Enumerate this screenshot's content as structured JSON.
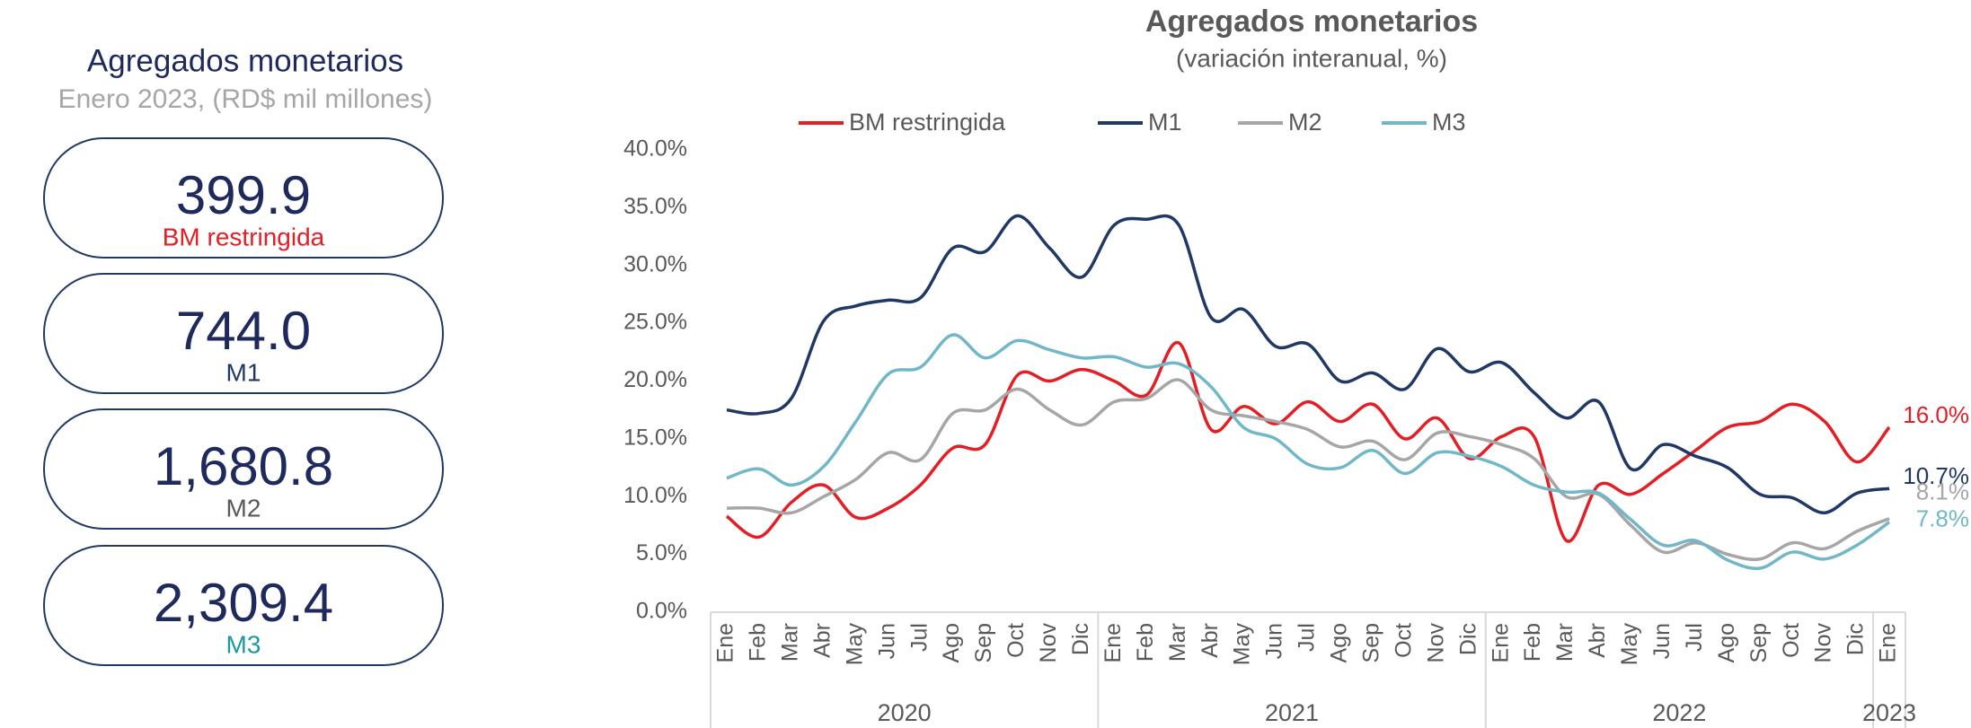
{
  "summary": {
    "title": "Agregados monetarios",
    "subtitle": "Enero 2023, (RD$ mil millones)",
    "cards": [
      {
        "value": "399.9",
        "label": "BM restringida",
        "color": "#e31e24"
      },
      {
        "value": "744.0",
        "label": "M1",
        "color": "#1f3864"
      },
      {
        "value": "1,680.8",
        "label": "M2",
        "color": "#595959"
      },
      {
        "value": "2,309.4",
        "label": "M3",
        "color": "#1a9aa0"
      }
    ]
  },
  "chart_data": {
    "type": "line",
    "title": "Agregados monetarios",
    "subtitle": "(variación interanual, %)",
    "categories": [
      "Ene",
      "Feb",
      "Mar",
      "Abr",
      "May",
      "Jun",
      "Jul",
      "Ago",
      "Sep",
      "Oct",
      "Nov",
      "Dic",
      "Ene",
      "Feb",
      "Mar",
      "Abr",
      "May",
      "Jun",
      "Jul",
      "Ago",
      "Sep",
      "Oct",
      "Nov",
      "Dic",
      "Ene",
      "Feb",
      "Mar",
      "Abr",
      "May",
      "Jun",
      "Jul",
      "Ago",
      "Sep",
      "Oct",
      "Nov",
      "Dic",
      "Ene"
    ],
    "category_groups": [
      "2020",
      "2020",
      "2020",
      "2020",
      "2020",
      "2020",
      "2020",
      "2020",
      "2020",
      "2020",
      "2020",
      "2020",
      "2021",
      "2021",
      "2021",
      "2021",
      "2021",
      "2021",
      "2021",
      "2021",
      "2021",
      "2021",
      "2021",
      "2021",
      "2022",
      "2022",
      "2022",
      "2022",
      "2022",
      "2022",
      "2022",
      "2022",
      "2022",
      "2022",
      "2022",
      "2022",
      "2023"
    ],
    "ylim": [
      0,
      40
    ],
    "yticks": [
      {
        "value": 0,
        "label": "0.0%"
      },
      {
        "value": 5,
        "label": "5.0%"
      },
      {
        "value": 10,
        "label": "10.0%"
      },
      {
        "value": 15,
        "label": "15.0%"
      },
      {
        "value": 20,
        "label": "20.0%"
      },
      {
        "value": 25,
        "label": "25.0%"
      },
      {
        "value": 30,
        "label": "30.0%"
      },
      {
        "value": 35,
        "label": "35.0%"
      },
      {
        "value": 40,
        "label": "40.0%"
      }
    ],
    "legend": "top",
    "grid": false,
    "series": [
      {
        "name": "BM restringida",
        "color": "#e31e24",
        "values": [
          8.3,
          6.5,
          9.5,
          11,
          8.2,
          9,
          11,
          14.2,
          14.5,
          20.5,
          20,
          21,
          20,
          18.8,
          23.3,
          15.8,
          17.8,
          16.3,
          18.2,
          16.5,
          18,
          15,
          16.8,
          13.3,
          15.2,
          15.2,
          6.2,
          11,
          10.2,
          12,
          14,
          16,
          16.5,
          18,
          16.5,
          13,
          16.0
        ],
        "value_labels": [
          null,
          null,
          null,
          null,
          null,
          null,
          null,
          null,
          null,
          null,
          null,
          null,
          null,
          null,
          null,
          null,
          null,
          null,
          null,
          null,
          null,
          null,
          null,
          null,
          null,
          null,
          null,
          null,
          null,
          null,
          null,
          null,
          null,
          null,
          null,
          null,
          "16.0%"
        ]
      },
      {
        "name": "M1",
        "color": "#1f3864",
        "values": [
          17.5,
          17.2,
          18.5,
          25.2,
          26.5,
          27,
          27.2,
          31.5,
          31.2,
          34.3,
          31.5,
          29,
          33.5,
          34,
          33.5,
          25.5,
          26.2,
          23,
          23.2,
          20,
          20.7,
          19.3,
          22.8,
          20.8,
          21.6,
          19,
          16.8,
          18.2,
          12.4,
          14.5,
          13.5,
          12.5,
          10.2,
          9.9,
          8.6,
          10.3,
          10.7
        ],
        "value_labels": [
          null,
          null,
          null,
          null,
          null,
          null,
          null,
          null,
          null,
          null,
          null,
          null,
          null,
          null,
          null,
          null,
          null,
          null,
          null,
          null,
          null,
          null,
          null,
          null,
          null,
          null,
          null,
          null,
          null,
          null,
          null,
          null,
          null,
          null,
          null,
          null,
          "10.7%"
        ]
      },
      {
        "name": "M2",
        "color": "#a6a6a6",
        "values": [
          9,
          9,
          8.6,
          10,
          11.5,
          13.8,
          13.2,
          17.2,
          17.5,
          19.3,
          17.5,
          16.2,
          18.2,
          18.5,
          20.1,
          17.5,
          17,
          16.5,
          15.8,
          14.3,
          14.8,
          13.2,
          15.5,
          15.2,
          14.5,
          13.3,
          10,
          10.2,
          7.5,
          5.2,
          6,
          5,
          4.6,
          6,
          5.5,
          7,
          8.1
        ],
        "value_labels": [
          null,
          null,
          null,
          null,
          null,
          null,
          null,
          null,
          null,
          null,
          null,
          null,
          null,
          null,
          null,
          null,
          null,
          null,
          null,
          null,
          null,
          null,
          null,
          null,
          null,
          null,
          null,
          null,
          null,
          null,
          null,
          null,
          null,
          null,
          null,
          null,
          "8.1%"
        ]
      },
      {
        "name": "M3",
        "color": "#70b8c8",
        "values": [
          11.6,
          12.4,
          11,
          12.6,
          16.5,
          20.6,
          21.2,
          24,
          22,
          23.5,
          22.7,
          22,
          22.1,
          21.2,
          21.5,
          19.5,
          16,
          15,
          12.8,
          12.5,
          14,
          12,
          13.8,
          13.5,
          12.6,
          11,
          10.4,
          10.3,
          8,
          5.8,
          6.2,
          4.5,
          3.8,
          5.2,
          4.6,
          5.8,
          7.8
        ],
        "value_labels": [
          null,
          null,
          null,
          null,
          null,
          null,
          null,
          null,
          null,
          null,
          null,
          null,
          null,
          null,
          null,
          null,
          null,
          null,
          null,
          null,
          null,
          null,
          null,
          null,
          null,
          null,
          null,
          null,
          null,
          null,
          null,
          null,
          null,
          null,
          null,
          null,
          "7.8%"
        ]
      }
    ]
  }
}
